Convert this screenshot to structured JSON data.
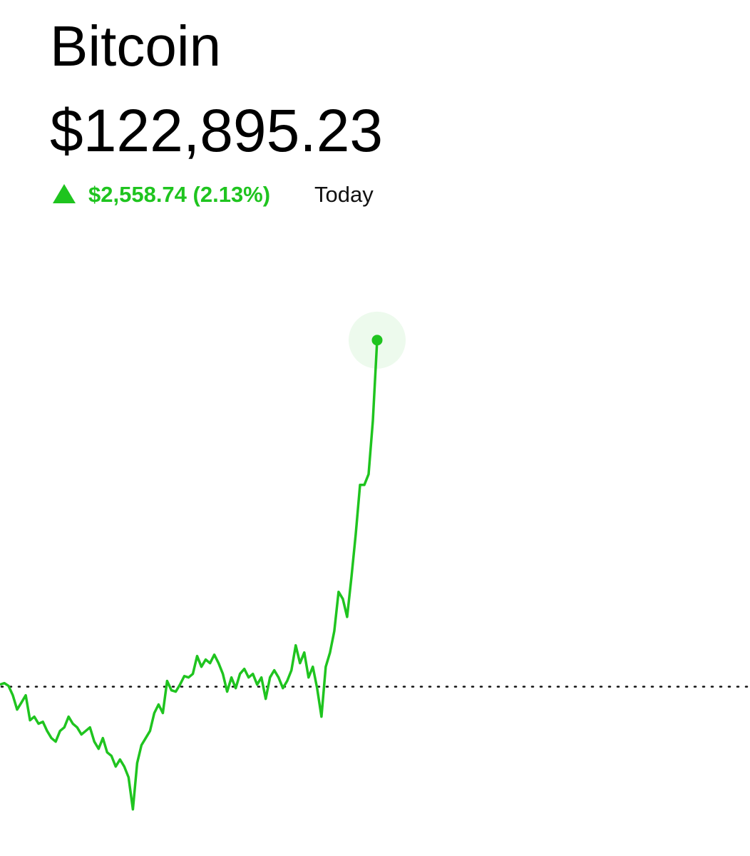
{
  "chart_data": {
    "type": "line",
    "title": "Bitcoin",
    "price": "$122,895.23",
    "change": "$2,558.74 (2.13%)",
    "period": "Today",
    "color": "#1fc41f",
    "values": [
      120352,
      120363,
      120342,
      120273,
      120168,
      120220,
      120273,
      120089,
      120115,
      120063,
      120078,
      120010,
      119957,
      119931,
      120010,
      120036,
      120115,
      120063,
      120036,
      119984,
      120010,
      120036,
      119931,
      119878,
      119957,
      119852,
      119826,
      119747,
      119799,
      119747,
      119668,
      119431,
      119773,
      119905,
      119957,
      120010,
      120142,
      120205,
      120142,
      120379,
      120310,
      120300,
      120352,
      120415,
      120405,
      120431,
      120563,
      120484,
      120537,
      120510,
      120573,
      120510,
      120431,
      120300,
      120405,
      120326,
      120431,
      120468,
      120405,
      120431,
      120352,
      120405,
      120247,
      120405,
      120458,
      120405,
      120326,
      120379,
      120458,
      120642,
      120510,
      120589,
      120405,
      120484,
      120326,
      120115,
      120484,
      120589,
      120747,
      121037,
      120984,
      120852,
      121142,
      121458,
      121826,
      121826,
      121905,
      122300,
      122895.23
    ],
    "baseline": 120336.49,
    "xlim": [
      0,
      175
    ],
    "ylim": [
      119350,
      123700
    ]
  }
}
